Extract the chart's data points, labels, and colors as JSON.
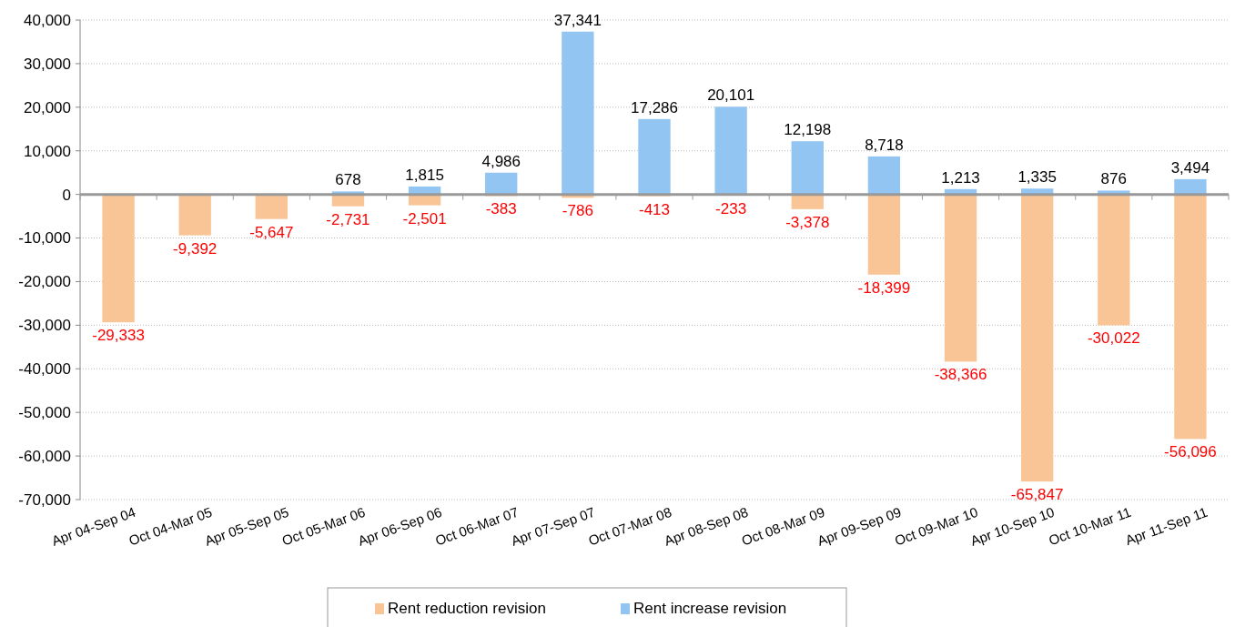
{
  "chart_data": {
    "type": "bar",
    "categories": [
      "Apr 04-Sep 04",
      "Oct 04-Mar 05",
      "Apr 05-Sep 05",
      "Oct 05-Mar 06",
      "Apr 06-Sep 06",
      "Oct 06-Mar 07",
      "Apr 07-Sep 07",
      "Oct 07-Mar 08",
      "Apr 08-Sep 08",
      "Oct 08-Mar 09",
      "Apr 09-Sep 09",
      "Oct 09-Mar 10",
      "Apr 10-Sep 10",
      "Oct 10-Mar 11",
      "Apr 11-Sep 11"
    ],
    "series": [
      {
        "name": "Rent reduction revision",
        "color": "#f9c596",
        "values": [
          -29333,
          -9392,
          -5647,
          -2731,
          -2501,
          -383,
          -786,
          -413,
          -233,
          -3378,
          -18399,
          -38366,
          -65847,
          -30022,
          -56096
        ],
        "value_labels": [
          "-29,333",
          "-9,392",
          "-5,647",
          "-2,731",
          "-2,501",
          "-383",
          "-786",
          "-413",
          "-233",
          "-3,378",
          "-18,399",
          "-38,366",
          "-65,847",
          "-30,022",
          "-56,096"
        ]
      },
      {
        "name": "Rent increase revision",
        "color": "#92c5f2",
        "values": [
          null,
          null,
          null,
          678,
          1815,
          4986,
          37341,
          17286,
          20101,
          12198,
          8718,
          1213,
          1335,
          876,
          3494
        ],
        "value_labels": [
          null,
          null,
          null,
          "678",
          "1,815",
          "4,986",
          "37,341",
          "17,286",
          "20,101",
          "12,198",
          "8,718",
          "1,213",
          "1,335",
          "876",
          "3,494"
        ]
      }
    ],
    "ylim": [
      -70000,
      40000
    ],
    "yticks": [
      {
        "value": -70000,
        "label": "-70,000"
      },
      {
        "value": -60000,
        "label": "-60,000"
      },
      {
        "value": -50000,
        "label": "-50,000"
      },
      {
        "value": -40000,
        "label": "-40,000"
      },
      {
        "value": -30000,
        "label": "-30,000"
      },
      {
        "value": -20000,
        "label": "-20,000"
      },
      {
        "value": -10000,
        "label": "-10,000"
      },
      {
        "value": 0,
        "label": "0"
      },
      {
        "value": 10000,
        "label": "10,000"
      },
      {
        "value": 20000,
        "label": "20,000"
      },
      {
        "value": 30000,
        "label": "30,000"
      },
      {
        "value": 40000,
        "label": "40,000"
      }
    ],
    "stacked": true,
    "grid": "y",
    "legend": "bottom"
  }
}
